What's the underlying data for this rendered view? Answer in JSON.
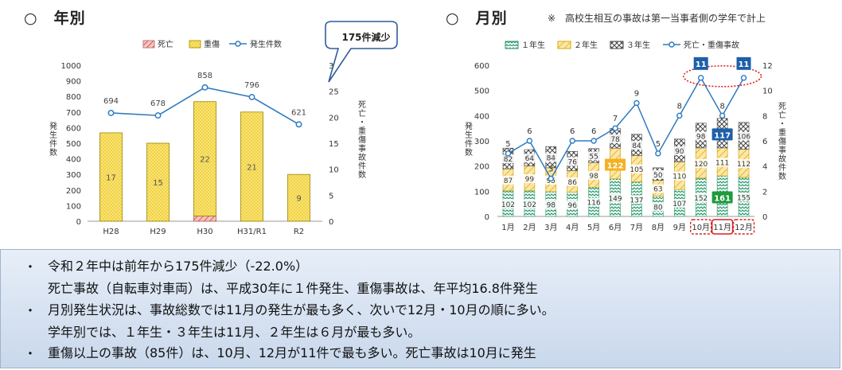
{
  "left_panel": {
    "title": "○　年別",
    "callout": "175件減少"
  },
  "right_panel": {
    "title": "○　月別",
    "note": "※　高校生相互の事故は第一当事者側の学年で計上"
  },
  "chart_data": [
    {
      "type": "bar",
      "legend": [
        "死亡",
        "重傷",
        "発生件数"
      ],
      "categories": [
        "H28",
        "H29",
        "H30",
        "H31/R1",
        "R2"
      ],
      "series": [
        {
          "name": "死亡",
          "values": [
            0,
            0,
            1,
            0,
            0
          ],
          "axis": "right"
        },
        {
          "name": "重傷",
          "values": [
            17,
            15,
            22,
            21,
            9
          ],
          "axis": "right"
        },
        {
          "name": "発生件数",
          "type": "line",
          "values": [
            694,
            678,
            858,
            796,
            621
          ],
          "axis": "left"
        }
      ],
      "ylabel": "発生件数",
      "y2label": "死亡・重傷事故件数",
      "ylim": [
        0,
        1000
      ],
      "y2lim": [
        0,
        30
      ],
      "yticks": [
        0,
        100,
        200,
        300,
        400,
        500,
        600,
        700,
        800,
        900,
        1000
      ],
      "y2ticks": [
        0,
        5,
        10,
        15,
        20,
        25,
        30
      ],
      "legend_position": "top",
      "grid": false
    },
    {
      "type": "bar",
      "stacked": true,
      "legend": [
        "１年生",
        "２年生",
        "３年生",
        "死亡・重傷事故"
      ],
      "categories": [
        "1月",
        "2月",
        "3月",
        "4月",
        "5月",
        "6月",
        "7月",
        "8月",
        "9月",
        "10月",
        "11月",
        "12月"
      ],
      "series": [
        {
          "name": "１年生",
          "values": [
            102,
            102,
            98,
            96,
            116,
            149,
            137,
            80,
            107,
            152,
            161,
            155
          ]
        },
        {
          "name": "２年生",
          "values": [
            87,
            99,
            95,
            86,
            98,
            122,
            105,
            63,
            110,
            120,
            111,
            112
          ]
        },
        {
          "name": "３年生",
          "values": [
            82,
            64,
            84,
            76,
            55,
            78,
            84,
            50,
            90,
            98,
            117,
            106
          ]
        },
        {
          "name": "死亡・重傷事故",
          "type": "line",
          "axis": "right",
          "values": [
            5,
            6,
            3,
            6,
            6,
            7,
            9,
            5,
            8,
            11,
            8,
            11
          ]
        }
      ],
      "ylabel": "発生件数",
      "y2label": "死亡・重傷事故件数",
      "ylim": [
        0,
        600
      ],
      "y2lim": [
        0,
        12
      ],
      "yticks": [
        0,
        100,
        200,
        300,
        400,
        500,
        600
      ],
      "y2ticks": [
        0,
        2,
        4,
        6,
        8,
        10,
        12
      ],
      "highlighted_values": [
        {
          "series": "１年生",
          "category": "11月",
          "value": 161,
          "color": "#1f9a3c"
        },
        {
          "series": "２年生",
          "category": "6月",
          "value": 122,
          "color": "#f5b021"
        },
        {
          "series": "３年生",
          "category": "11月",
          "value": 117,
          "color": "#1d5fa8"
        },
        {
          "series": "死亡・重傷事故",
          "category": "10月",
          "value": 11,
          "color": "#1d5fa8"
        },
        {
          "series": "死亡・重傷事故",
          "category": "12月",
          "value": 11,
          "color": "#1d5fa8"
        }
      ],
      "legend_position": "top",
      "grid": false
    }
  ],
  "summary": {
    "bullet": "・",
    "lines": [
      "令和２年中は前年から175件減少（-22.0%）",
      "死亡事故（自転車対車両）は、平成30年に１件発生、重傷事故は、年平均16.8件発生",
      "月別発生状況は、事故総数では11月の発生が最も多く、次いで12月・10月の順に多い。",
      "学年別では、１年生・３年生は11月、２年生は６月が最も多い。",
      "重傷以上の事故（85件）は、10月、12月が11件で最も多い。死亡事故は10月に発生"
    ]
  },
  "colors": {
    "death": "#d9534f",
    "serious": "#fce36e",
    "line": "#2e7bbf",
    "grade1": "#2a9a6a",
    "grade2": "#f2c94c",
    "grade3": "#555555",
    "highlight_dashed": "#d92020"
  }
}
